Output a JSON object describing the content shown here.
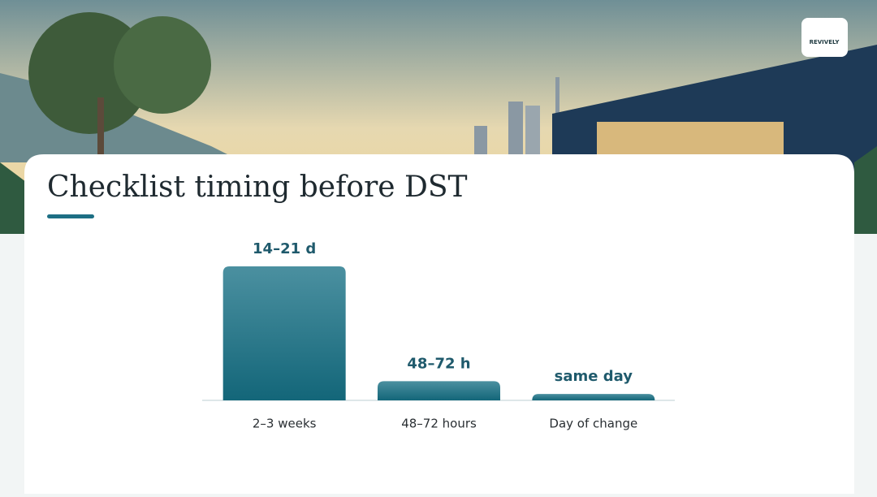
{
  "logo": "REVIVELY",
  "chart_data": {
    "type": "bar",
    "title": "Checklist timing before DST",
    "categories": [
      "2–3 weeks",
      "48–72 hours",
      "Day of change"
    ],
    "values": [
      21,
      3,
      1
    ],
    "value_labels": [
      "14–21 d",
      "48–72 h",
      "same day"
    ],
    "ylim": [
      0,
      21
    ],
    "color": "#1d6f84"
  }
}
